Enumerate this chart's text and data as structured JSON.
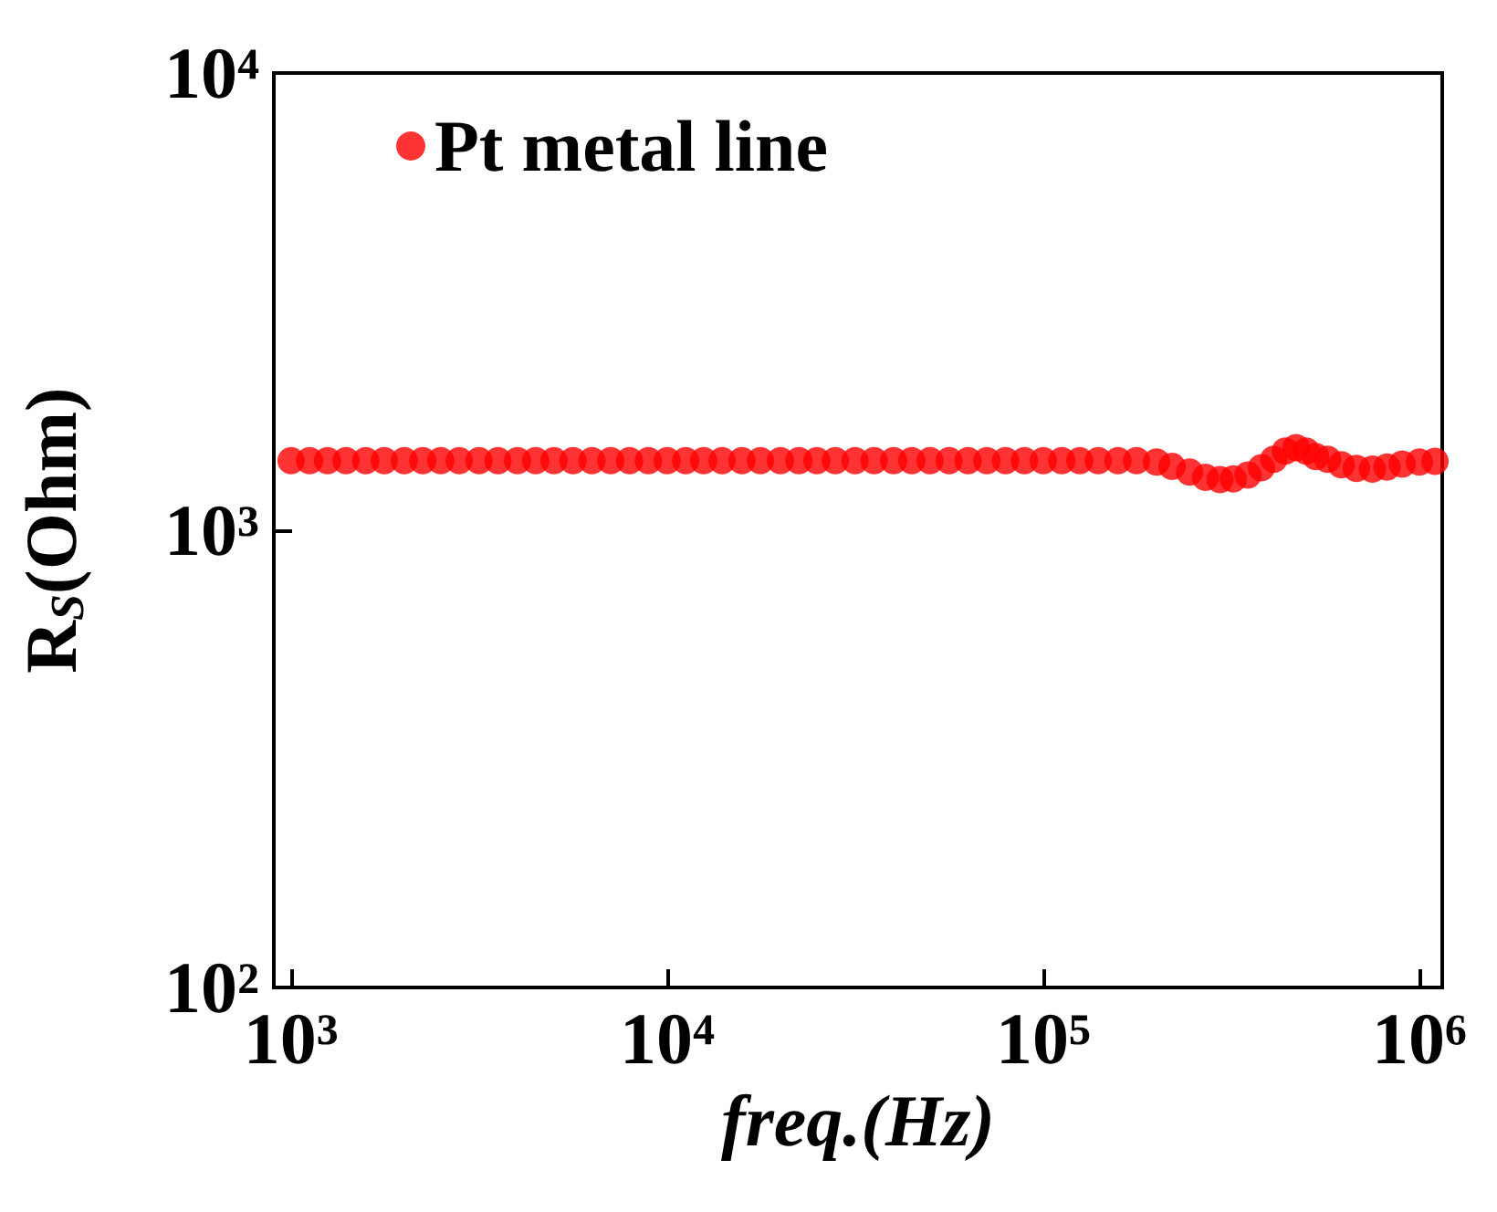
{
  "chart_data": {
    "type": "scatter",
    "xlabel": "freq.(Hz)",
    "ylabel": "R$_{S}$(Ohm)",
    "log": "xy",
    "xlim": [
      900,
      1150000
    ],
    "ylim": [
      100,
      10000
    ],
    "xticks": [
      {
        "value": 1000,
        "label": "10³"
      },
      {
        "value": 10000,
        "label": "10⁴"
      },
      {
        "value": 100000,
        "label": "10⁵"
      },
      {
        "value": 1000000,
        "label": "10⁶"
      }
    ],
    "yticks": [
      {
        "value": 100,
        "label": "10²"
      },
      {
        "value": 1000,
        "label": "10³"
      },
      {
        "value": 10000,
        "label": "10⁴"
      }
    ],
    "grid": false,
    "legend": "top left",
    "marker": "circle",
    "series": [
      {
        "name": "Pt metal line",
        "color": "#ff0000",
        "x": [
          1000,
          1120,
          1250,
          1400,
          1580,
          1770,
          2000,
          2240,
          2500,
          2800,
          3160,
          3550,
          4000,
          4470,
          5000,
          5620,
          6310,
          7080,
          7940,
          8910,
          10000,
          11200,
          12500,
          14000,
          15800,
          17700,
          20000,
          22400,
          25000,
          28000,
          31600,
          35500,
          40000,
          44700,
          50000,
          56200,
          63100,
          70800,
          79400,
          89100,
          100000,
          112000,
          125000,
          140000,
          158000,
          177000,
          200000,
          220000,
          245000,
          270000,
          295000,
          320000,
          350000,
          380000,
          410000,
          440000,
          470000,
          500000,
          530000,
          570000,
          620000,
          680000,
          750000,
          820000,
          900000,
          1000000,
          1100000
        ],
        "values": [
          1420,
          1420,
          1420,
          1420,
          1420,
          1420,
          1420,
          1420,
          1420,
          1420,
          1420,
          1420,
          1420,
          1420,
          1420,
          1420,
          1420,
          1420,
          1420,
          1420,
          1420,
          1420,
          1420,
          1420,
          1420,
          1420,
          1420,
          1420,
          1420,
          1420,
          1420,
          1420,
          1420,
          1420,
          1420,
          1420,
          1420,
          1420,
          1420,
          1420,
          1420,
          1420,
          1420,
          1420,
          1420,
          1420,
          1410,
          1380,
          1340,
          1305,
          1290,
          1295,
          1320,
          1370,
          1430,
          1490,
          1515,
          1490,
          1450,
          1430,
          1390,
          1365,
          1360,
          1375,
          1395,
          1410,
          1415
        ]
      }
    ]
  }
}
